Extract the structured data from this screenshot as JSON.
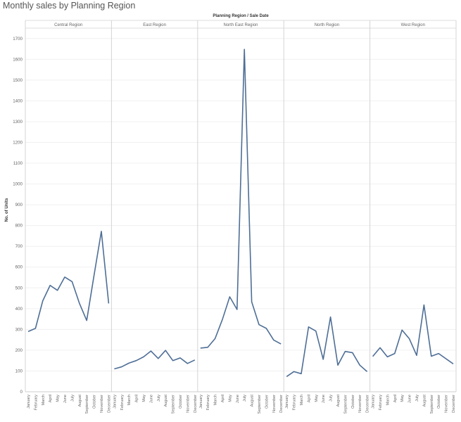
{
  "title": "Monthly sales by Planning Region",
  "chart_data": {
    "type": "line",
    "title": "Monthly sales by Planning Region",
    "column_header": "Planning Region  /  Sale Date",
    "ylabel": "No. of Units",
    "ylim": [
      0,
      1750
    ],
    "yticks": [
      0,
      100,
      200,
      300,
      400,
      500,
      600,
      700,
      800,
      900,
      1000,
      1100,
      1200,
      1300,
      1400,
      1500,
      1600,
      1700
    ],
    "months": [
      "January",
      "February",
      "March",
      "April",
      "May",
      "June",
      "July",
      "August",
      "September",
      "October",
      "November",
      "December"
    ],
    "grid": true,
    "line_color": "#4e6e96",
    "panels": [
      {
        "name": "Central Region",
        "values": [
          290,
          305,
          438,
          512,
          488,
          552,
          530,
          426,
          343,
          560,
          772,
          425
        ]
      },
      {
        "name": "East Region",
        "values": [
          110,
          120,
          138,
          150,
          168,
          196,
          160,
          199,
          150,
          163,
          136,
          153
        ]
      },
      {
        "name": "North East Region",
        "values": [
          210,
          214,
          256,
          348,
          457,
          396,
          1648,
          433,
          323,
          305,
          249,
          230
        ]
      },
      {
        "name": "North Region",
        "values": [
          73,
          97,
          87,
          312,
          292,
          156,
          360,
          128,
          194,
          188,
          128,
          97
        ]
      },
      {
        "name": "West Region",
        "values": [
          170,
          212,
          168,
          184,
          297,
          255,
          175,
          418,
          171,
          184,
          159,
          134
        ]
      }
    ]
  }
}
